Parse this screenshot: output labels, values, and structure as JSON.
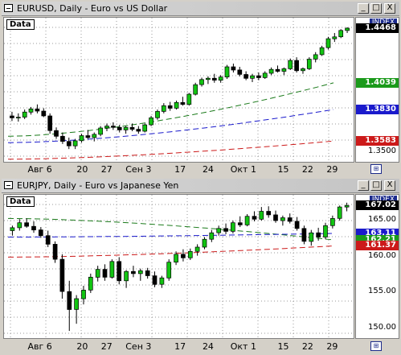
{
  "pane1": {
    "title": "EURUSD, Daily - Euro vs US Dollar",
    "data_label": "Data",
    "index_label": "INDEX",
    "buttons": [
      "_",
      "□",
      "X"
    ],
    "x_labels": [
      "Авг 6",
      "20",
      "27",
      "Сен 3",
      "17",
      "24",
      "Окт 1",
      "15",
      "22",
      "29"
    ],
    "price_ticks": [
      "1.3500"
    ],
    "price_boxes": [
      {
        "value": "1.4468",
        "bg": "#000000",
        "fg": "#ffffff"
      },
      {
        "value": "1.4039",
        "bg": "#1a9a1a",
        "fg": "#ffffff"
      },
      {
        "value": "1.3830",
        "bg": "#1a1acc",
        "fg": "#ffffff"
      },
      {
        "value": "1.3583",
        "bg": "#cc1a1a",
        "fg": "#ffffff"
      }
    ]
  },
  "pane2": {
    "title": "EURJPY, Daily - Euro vs Japanese Yen",
    "data_label": "Data",
    "index_label": "INDEX",
    "buttons": [
      "_",
      "□",
      "X"
    ],
    "x_labels": [
      "Авг 6",
      "20",
      "27",
      "Сен 3",
      "17",
      "24",
      "Окт 1",
      "15",
      "22",
      "29"
    ],
    "price_ticks": [
      "165.00",
      "160.00",
      "155.00",
      "150.00"
    ],
    "price_boxes": [
      {
        "value": "167.02",
        "bg": "#000000",
        "fg": "#ffffff"
      },
      {
        "value": "163.11",
        "bg": "#1a1acc",
        "fg": "#ffffff"
      },
      {
        "value": "162.21",
        "bg": "#1a9a1a",
        "fg": "#ffffff"
      },
      {
        "value": "161.37",
        "bg": "#cc1a1a",
        "fg": "#ffffff"
      }
    ]
  },
  "colors": {
    "bull": "#12c412",
    "bear": "#000000",
    "ma_green": "#1a7a1a",
    "ma_blue": "#1a1acc",
    "ma_red": "#cc1a1a",
    "accent": "#1b2a8c"
  },
  "chart_data": [
    {
      "type": "candlestick",
      "title": "EURUSD, Daily - Euro vs US Dollar",
      "x_labels": [
        "Авг 6",
        "20",
        "27",
        "Сен 3",
        "17",
        "24",
        "Окт 1",
        "15",
        "22",
        "29"
      ],
      "ylim": [
        1.342,
        1.455
      ],
      "ohlc": [
        [
          1.378,
          1.3812,
          1.374,
          1.3765
        ],
        [
          1.3765,
          1.38,
          1.3735,
          1.377
        ],
        [
          1.377,
          1.383,
          1.3755,
          1.381
        ],
        [
          1.381,
          1.385,
          1.379,
          1.3835
        ],
        [
          1.3835,
          1.387,
          1.38,
          1.3818
        ],
        [
          1.3818,
          1.384,
          1.377,
          1.378
        ],
        [
          1.378,
          1.38,
          1.364,
          1.3665
        ],
        [
          1.3665,
          1.369,
          1.36,
          1.362
        ],
        [
          1.362,
          1.365,
          1.356,
          1.358
        ],
        [
          1.358,
          1.361,
          1.352,
          1.3545
        ],
        [
          1.3545,
          1.36,
          1.352,
          1.3585
        ],
        [
          1.3585,
          1.364,
          1.357,
          1.3625
        ],
        [
          1.3625,
          1.367,
          1.36,
          1.361
        ],
        [
          1.361,
          1.365,
          1.358,
          1.3635
        ],
        [
          1.3635,
          1.37,
          1.362,
          1.3685
        ],
        [
          1.3685,
          1.372,
          1.366,
          1.37
        ],
        [
          1.37,
          1.373,
          1.367,
          1.369
        ],
        [
          1.369,
          1.371,
          1.365,
          1.367
        ],
        [
          1.367,
          1.37,
          1.364,
          1.369
        ],
        [
          1.369,
          1.372,
          1.366,
          1.3675
        ],
        [
          1.3675,
          1.37,
          1.364,
          1.366
        ],
        [
          1.366,
          1.372,
          1.365,
          1.371
        ],
        [
          1.371,
          1.378,
          1.37,
          1.3765
        ],
        [
          1.3765,
          1.383,
          1.375,
          1.3815
        ],
        [
          1.3815,
          1.388,
          1.38,
          1.386
        ],
        [
          1.386,
          1.389,
          1.382,
          1.384
        ],
        [
          1.384,
          1.39,
          1.383,
          1.3885
        ],
        [
          1.3885,
          1.393,
          1.386,
          1.387
        ],
        [
          1.387,
          1.396,
          1.386,
          1.395
        ],
        [
          1.395,
          1.404,
          1.394,
          1.4025
        ],
        [
          1.4025,
          1.408,
          1.401,
          1.4065
        ],
        [
          1.4065,
          1.409,
          1.403,
          1.4075
        ],
        [
          1.4075,
          1.411,
          1.404,
          1.406
        ],
        [
          1.406,
          1.41,
          1.404,
          1.4085
        ],
        [
          1.4085,
          1.418,
          1.407,
          1.4165
        ],
        [
          1.4165,
          1.419,
          1.412,
          1.414
        ],
        [
          1.414,
          1.4165,
          1.409,
          1.4105
        ],
        [
          1.4105,
          1.413,
          1.406,
          1.4075
        ],
        [
          1.4075,
          1.411,
          1.4045,
          1.4095
        ],
        [
          1.4095,
          1.412,
          1.406,
          1.408
        ],
        [
          1.408,
          1.413,
          1.407,
          1.4115
        ],
        [
          1.4115,
          1.416,
          1.41,
          1.4145
        ],
        [
          1.4145,
          1.4175,
          1.412,
          1.413
        ],
        [
          1.413,
          1.416,
          1.41,
          1.415
        ],
        [
          1.415,
          1.423,
          1.414,
          1.4215
        ],
        [
          1.4215,
          1.424,
          1.412,
          1.4135
        ],
        [
          1.4135,
          1.416,
          1.411,
          1.415
        ],
        [
          1.415,
          1.424,
          1.414,
          1.4225
        ],
        [
          1.4225,
          1.428,
          1.42,
          1.426
        ],
        [
          1.426,
          1.433,
          1.425,
          1.4315
        ],
        [
          1.4315,
          1.44,
          1.43,
          1.4385
        ],
        [
          1.4385,
          1.443,
          1.436,
          1.44
        ],
        [
          1.44,
          1.446,
          1.439,
          1.445
        ],
        [
          1.445,
          1.4475,
          1.443,
          1.4468
        ]
      ],
      "moving_averages": [
        {
          "color": "green",
          "start": 1.362,
          "end": 1.4039
        },
        {
          "color": "blue",
          "start": 1.357,
          "end": 1.383
        },
        {
          "color": "red",
          "start": 1.344,
          "end": 1.3583
        }
      ]
    },
    {
      "type": "candlestick",
      "title": "EURJPY, Daily - Euro vs Japanese Yen",
      "x_labels": [
        "Авг 6",
        "20",
        "27",
        "Сен 3",
        "17",
        "24",
        "Окт 1",
        "15",
        "22",
        "29"
      ],
      "ylim": [
        148.5,
        168.5
      ],
      "ohlc": [
        [
          163.5,
          164.2,
          162.8,
          163.9
        ],
        [
          163.9,
          165.1,
          163.5,
          164.6
        ],
        [
          164.6,
          165.2,
          163.9,
          164.1
        ],
        [
          164.1,
          164.8,
          163.2,
          163.6
        ],
        [
          163.6,
          164.0,
          162.5,
          162.8
        ],
        [
          162.8,
          163.5,
          161.2,
          161.6
        ],
        [
          161.6,
          162.0,
          159.0,
          159.5
        ],
        [
          159.5,
          160.2,
          154.0,
          155.0
        ],
        [
          155.0,
          156.5,
          149.5,
          152.5
        ],
        [
          152.5,
          154.5,
          150.5,
          154.0
        ],
        [
          154.0,
          155.8,
          153.2,
          155.2
        ],
        [
          155.2,
          157.5,
          154.8,
          157.0
        ],
        [
          157.0,
          158.6,
          156.4,
          158.1
        ],
        [
          158.1,
          158.8,
          156.5,
          157.0
        ],
        [
          157.0,
          159.5,
          156.8,
          159.2
        ],
        [
          159.2,
          159.8,
          156.0,
          156.5
        ],
        [
          156.5,
          158.0,
          155.5,
          157.8
        ],
        [
          157.8,
          158.6,
          157.0,
          157.5
        ],
        [
          157.5,
          158.2,
          156.5,
          157.9
        ],
        [
          157.9,
          158.3,
          156.8,
          157.2
        ],
        [
          157.2,
          157.8,
          155.6,
          156.0
        ],
        [
          156.0,
          157.2,
          155.5,
          156.9
        ],
        [
          156.9,
          159.5,
          156.5,
          159.1
        ],
        [
          159.1,
          160.6,
          158.7,
          160.2
        ],
        [
          160.2,
          160.9,
          159.2,
          159.7
        ],
        [
          159.7,
          161.0,
          159.4,
          160.6
        ],
        [
          160.6,
          161.6,
          160.0,
          161.2
        ],
        [
          161.2,
          162.6,
          160.9,
          162.3
        ],
        [
          162.3,
          163.6,
          161.9,
          163.2
        ],
        [
          163.2,
          164.2,
          162.8,
          163.8
        ],
        [
          163.8,
          164.5,
          163.0,
          163.4
        ],
        [
          163.4,
          164.9,
          163.1,
          164.6
        ],
        [
          164.6,
          165.5,
          164.0,
          164.3
        ],
        [
          164.3,
          165.8,
          164.1,
          165.5
        ],
        [
          165.5,
          166.2,
          164.8,
          165.1
        ],
        [
          165.1,
          166.8,
          164.9,
          166.2
        ],
        [
          166.2,
          166.9,
          165.3,
          165.7
        ],
        [
          165.7,
          166.3,
          164.6,
          164.9
        ],
        [
          164.9,
          165.6,
          164.2,
          165.3
        ],
        [
          165.3,
          165.9,
          164.5,
          164.8
        ],
        [
          164.8,
          165.4,
          163.5,
          163.8
        ],
        [
          163.8,
          164.2,
          161.6,
          162.0
        ],
        [
          162.0,
          163.6,
          161.4,
          163.2
        ],
        [
          163.2,
          163.9,
          162.1,
          162.6
        ],
        [
          162.6,
          164.6,
          162.3,
          164.2
        ],
        [
          164.2,
          165.6,
          163.8,
          165.2
        ],
        [
          165.2,
          167.0,
          164.9,
          166.8
        ],
        [
          166.8,
          167.4,
          166.2,
          167.02
        ]
      ],
      "moving_averages": [
        {
          "color": "green",
          "start": 165.2,
          "end": 162.21
        },
        {
          "color": "blue",
          "start": 162.6,
          "end": 163.11
        },
        {
          "color": "red",
          "start": 159.8,
          "end": 161.37
        }
      ]
    }
  ]
}
